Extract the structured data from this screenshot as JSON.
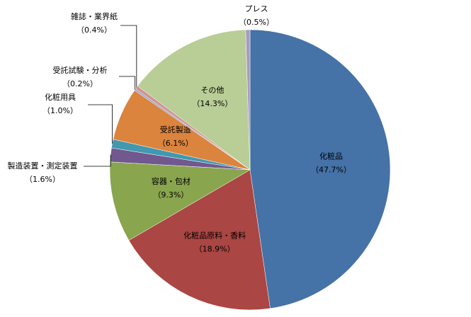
{
  "chart_data": {
    "type": "pie",
    "categories": [
      "化粧品",
      "化粧品原料・香料",
      "容器・包材",
      "製造装置・測定装置",
      "化粧用具",
      "受託製造",
      "受託試験・分析",
      "雑誌・業界紙",
      "その他",
      "プレス"
    ],
    "values": [
      47.7,
      18.9,
      9.3,
      1.6,
      1.0,
      6.1,
      0.2,
      0.4,
      14.3,
      0.5
    ],
    "value_labels": [
      "（47.7%）",
      "（18.9%）",
      "（9.3%）",
      "（1.6%）",
      "（1.0%）",
      "（6.1%）",
      "（0.2%）",
      "（0.4%）",
      "（14.3%）",
      "（0.5%）"
    ],
    "colors": [
      "#4572A7",
      "#AA4643",
      "#89A54E",
      "#71588F",
      "#4198AF",
      "#DB843D",
      "#93A9CF",
      "#D19392",
      "#B9CD96",
      "#A99BBD"
    ]
  }
}
